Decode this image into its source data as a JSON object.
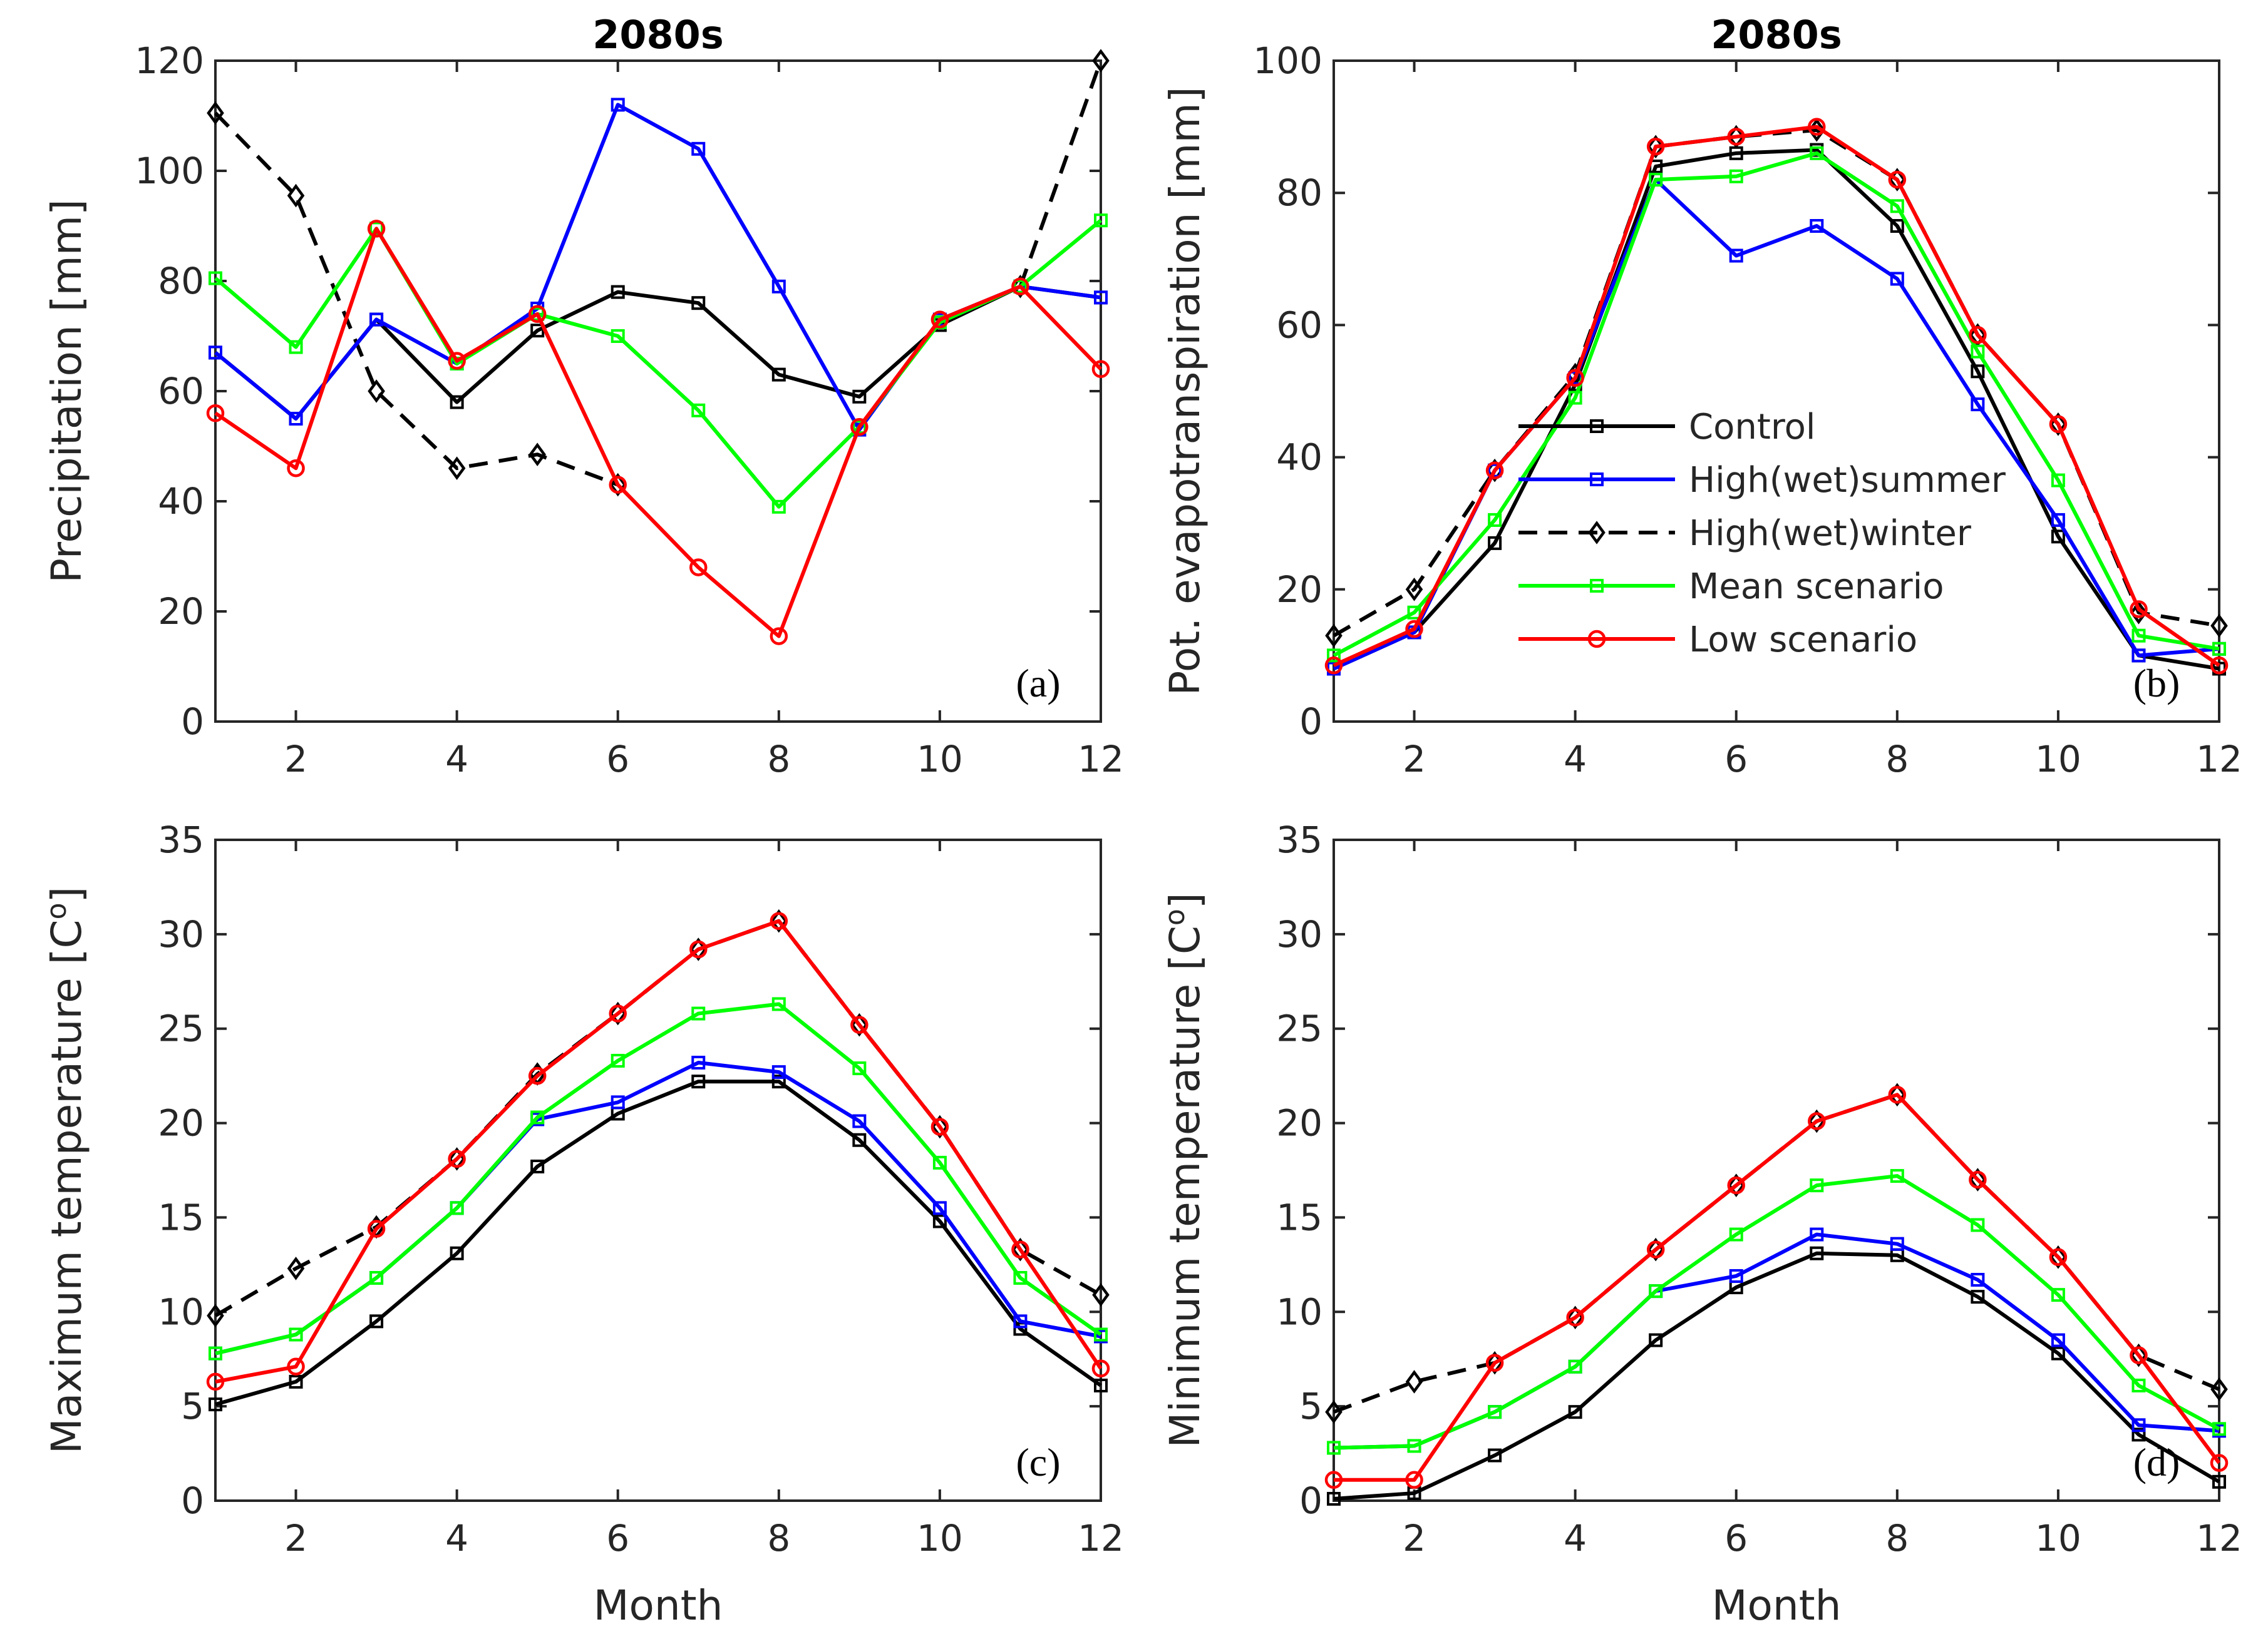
{
  "chart_data": [
    {
      "panel": "(a)",
      "type": "line",
      "title": "2080s",
      "xlabel": "",
      "ylabel": "Precipitation [mm]",
      "xlim": [
        1,
        12
      ],
      "ylim": [
        0,
        120
      ],
      "xticks": [
        2,
        4,
        6,
        8,
        10,
        12
      ],
      "yticks": [
        0,
        20,
        40,
        60,
        80,
        100,
        120
      ],
      "x": [
        1,
        2,
        3,
        4,
        5,
        6,
        7,
        8,
        9,
        10,
        11,
        12
      ],
      "series": [
        {
          "key": "control",
          "values": [
            67,
            55,
            73,
            58,
            71,
            78,
            76,
            63,
            59,
            72,
            79,
            77
          ]
        },
        {
          "key": "high_summer",
          "values": [
            67,
            55,
            73,
            65,
            75,
            112,
            104,
            79,
            53,
            73,
            79,
            77
          ]
        },
        {
          "key": "high_winter",
          "values": [
            110.5,
            95.5,
            60,
            46,
            48.5,
            43,
            null,
            null,
            null,
            null,
            79,
            120
          ]
        },
        {
          "key": "mean",
          "values": [
            80.5,
            68,
            89.5,
            65,
            74,
            70,
            56.5,
            39,
            53.5,
            72.5,
            79,
            91
          ]
        },
        {
          "key": "low",
          "values": [
            56,
            46,
            89.5,
            65.5,
            74,
            43,
            28,
            15.5,
            53.5,
            73,
            79,
            64
          ]
        }
      ]
    },
    {
      "panel": "(b)",
      "type": "line",
      "title": "2080s",
      "xlabel": "",
      "ylabel": "Pot. evapotranspiration [mm]",
      "xlim": [
        1,
        12
      ],
      "ylim": [
        0,
        100
      ],
      "xticks": [
        2,
        4,
        6,
        8,
        10,
        12
      ],
      "yticks": [
        0,
        20,
        40,
        60,
        80,
        100
      ],
      "x": [
        1,
        2,
        3,
        4,
        5,
        6,
        7,
        8,
        9,
        10,
        11,
        12
      ],
      "series": [
        {
          "key": "control",
          "values": [
            8,
            13.5,
            27,
            51,
            84,
            86,
            86.5,
            75,
            53,
            28,
            10,
            8
          ]
        },
        {
          "key": "high_summer",
          "values": [
            8,
            13.5,
            38,
            52,
            82,
            70.5,
            75,
            67,
            48,
            30.5,
            10,
            11
          ]
        },
        {
          "key": "high_winter",
          "values": [
            13,
            20,
            38,
            52.5,
            87,
            88.5,
            89.5,
            82,
            58.5,
            45,
            16.5,
            14.5
          ]
        },
        {
          "key": "mean",
          "values": [
            10,
            16.5,
            30.5,
            49,
            82,
            82.5,
            86,
            78,
            56,
            36.5,
            13,
            11
          ]
        },
        {
          "key": "low",
          "values": [
            8.5,
            14,
            38,
            52,
            87,
            88.5,
            90,
            82,
            58.5,
            45,
            17,
            8.5
          ]
        }
      ],
      "legend": {
        "position": "center-left",
        "entries": [
          {
            "key": "control",
            "label": "Control"
          },
          {
            "key": "high_summer",
            "label": "High(wet)summer"
          },
          {
            "key": "high_winter",
            "label": "High(wet)winter"
          },
          {
            "key": "mean",
            "label": "Mean scenario"
          },
          {
            "key": "low",
            "label": "Low scenario"
          }
        ]
      }
    },
    {
      "panel": "(c)",
      "type": "line",
      "title": "",
      "xlabel": "Month",
      "ylabel": "Maximum temperature [C",
      "ylabel_sup": "o",
      "ylabel_end": "]",
      "xlim": [
        1,
        12
      ],
      "ylim": [
        0,
        35
      ],
      "xticks": [
        2,
        4,
        6,
        8,
        10,
        12
      ],
      "yticks": [
        0,
        5,
        10,
        15,
        20,
        25,
        30,
        35
      ],
      "x": [
        1,
        2,
        3,
        4,
        5,
        6,
        7,
        8,
        9,
        10,
        11,
        12
      ],
      "series": [
        {
          "key": "control",
          "values": [
            5.1,
            6.3,
            9.5,
            13.1,
            17.7,
            20.5,
            22.2,
            22.2,
            19.1,
            14.8,
            9.1,
            6.1
          ]
        },
        {
          "key": "high_summer",
          "values": [
            7.8,
            8.8,
            11.8,
            15.5,
            20.2,
            21.1,
            23.2,
            22.7,
            20.1,
            15.5,
            9.5,
            8.7
          ]
        },
        {
          "key": "high_winter",
          "values": [
            9.8,
            12.3,
            14.5,
            18.1,
            22.6,
            25.8,
            29.2,
            30.7,
            25.2,
            19.8,
            13.3,
            10.9
          ]
        },
        {
          "key": "mean",
          "values": [
            7.8,
            8.8,
            11.8,
            15.5,
            20.3,
            23.3,
            25.8,
            26.3,
            22.9,
            17.9,
            11.8,
            8.8
          ]
        },
        {
          "key": "low",
          "values": [
            6.3,
            7.1,
            14.4,
            18.1,
            22.5,
            25.8,
            29.2,
            30.7,
            25.2,
            19.8,
            13.3,
            7.0
          ]
        }
      ]
    },
    {
      "panel": "(d)",
      "type": "line",
      "title": "",
      "xlabel": "Month",
      "ylabel": "Minimum temperature [C",
      "ylabel_sup": "o",
      "ylabel_end": "]",
      "xlim": [
        1,
        12
      ],
      "ylim": [
        0,
        35
      ],
      "xticks": [
        2,
        4,
        6,
        8,
        10,
        12
      ],
      "yticks": [
        0,
        5,
        10,
        15,
        20,
        25,
        30,
        35
      ],
      "x": [
        1,
        2,
        3,
        4,
        5,
        6,
        7,
        8,
        9,
        10,
        11,
        12
      ],
      "series": [
        {
          "key": "control",
          "values": [
            0.1,
            0.4,
            2.4,
            4.7,
            8.5,
            11.3,
            13.1,
            13.0,
            10.8,
            7.8,
            3.5,
            1.0
          ]
        },
        {
          "key": "high_summer",
          "values": [
            2.8,
            2.9,
            4.7,
            7.1,
            11.1,
            11.9,
            14.1,
            13.6,
            11.7,
            8.5,
            4.0,
            3.7
          ]
        },
        {
          "key": "high_winter",
          "values": [
            4.7,
            6.3,
            7.3,
            9.7,
            13.3,
            16.7,
            20.1,
            21.5,
            17.0,
            12.9,
            7.7,
            5.9
          ]
        },
        {
          "key": "mean",
          "values": [
            2.8,
            2.9,
            4.7,
            7.1,
            11.1,
            14.1,
            16.7,
            17.2,
            14.6,
            10.9,
            6.1,
            3.8
          ]
        },
        {
          "key": "low",
          "values": [
            1.1,
            1.1,
            7.3,
            9.7,
            13.3,
            16.7,
            20.1,
            21.5,
            17.0,
            12.9,
            7.7,
            2.0
          ]
        }
      ]
    }
  ],
  "series_styles": {
    "control": {
      "color": "#000000",
      "dash": "solid",
      "marker": "square"
    },
    "high_summer": {
      "color": "#0000ff",
      "dash": "solid",
      "marker": "square"
    },
    "high_winter": {
      "color": "#000000",
      "dash": "dashed",
      "marker": "diamond"
    },
    "mean": {
      "color": "#00ff00",
      "dash": "solid",
      "marker": "square"
    },
    "low": {
      "color": "#ff0000",
      "dash": "solid",
      "marker": "circle"
    }
  },
  "series_order": [
    "high_winter",
    "control",
    "high_summer",
    "mean",
    "low"
  ]
}
